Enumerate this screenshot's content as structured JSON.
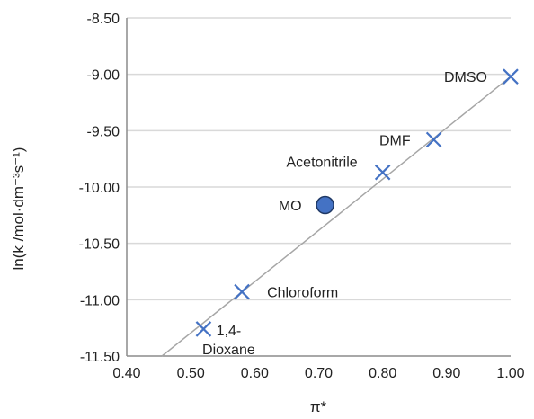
{
  "chart_data": {
    "type": "scatter",
    "title": "",
    "xlabel": "π*",
    "ylabel": "ln(k /mol·dm⁻³s⁻¹)",
    "xlim": [
      0.4,
      1.0
    ],
    "ylim": [
      -11.5,
      -8.5
    ],
    "xticks": [
      0.4,
      0.5,
      0.6,
      0.7,
      0.8,
      0.9,
      1.0
    ],
    "yticks": [
      -8.5,
      -9.0,
      -9.5,
      -10.0,
      -10.5,
      -11.0,
      -11.5
    ],
    "xtick_labels": [
      "0.40",
      "0.50",
      "0.60",
      "0.70",
      "0.80",
      "0.90",
      "1.00"
    ],
    "ytick_labels": [
      "-8.50",
      "-9.00",
      "-9.50",
      "-10.00",
      "-10.50",
      "-11.00",
      "-11.50"
    ],
    "grid": "horizontal",
    "colors": {
      "marker": "#4472C4",
      "mo_fill": "#4472C4",
      "mo_stroke": "#1F3864",
      "trend": "#A6A6A6",
      "grid": "#D9D9D9"
    },
    "series": [
      {
        "marker": "x",
        "points": [
          {
            "label": "1,4-\nDioxane",
            "x": 0.52,
            "y": -11.26
          },
          {
            "label": "Chloroform",
            "x": 0.58,
            "y": -10.93
          },
          {
            "label": "Acetonitrile",
            "x": 0.8,
            "y": -9.87
          },
          {
            "label": "DMF",
            "x": 0.88,
            "y": -9.58
          },
          {
            "label": "DMSO",
            "x": 1.0,
            "y": -9.02
          }
        ]
      },
      {
        "marker": "circle",
        "points": [
          {
            "label": "MO",
            "x": 0.71,
            "y": -10.16
          }
        ]
      }
    ],
    "trendline": {
      "type": "linear",
      "x_start": 0.455,
      "x_end": 1.0,
      "y_start": -11.5,
      "y_end": -9.02
    }
  }
}
